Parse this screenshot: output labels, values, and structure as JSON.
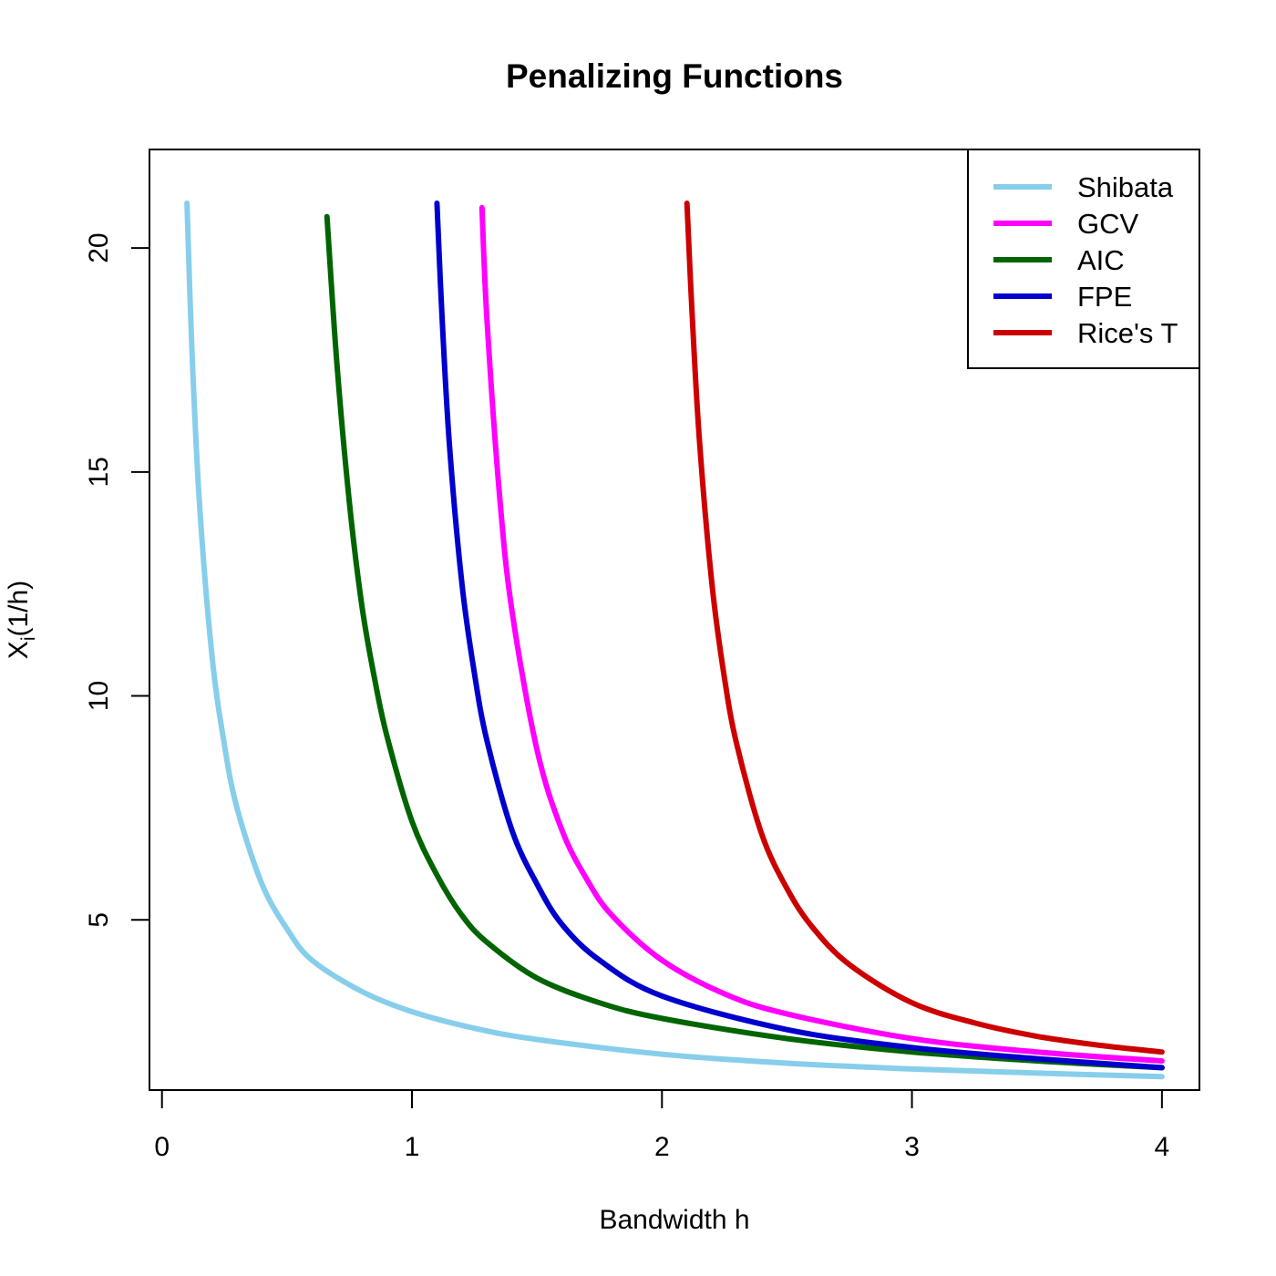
{
  "chart_data": {
    "type": "line",
    "title": "Penalizing Functions",
    "xlabel": "Bandwidth h",
    "ylabel": {
      "main": "X",
      "subscript": "i",
      "rest": "(1/h)"
    },
    "xlim": [
      -0.05,
      4.15
    ],
    "ylim": [
      1.2,
      22.2
    ],
    "xticks": [
      0,
      1,
      2,
      3,
      4
    ],
    "yticks": [
      5,
      10,
      15,
      20
    ],
    "grid": false,
    "legend_position": "top-right",
    "series": [
      {
        "name": "Shibata",
        "color": "#87CEEB",
        "x": [
          0.1,
          0.12,
          0.15,
          0.2,
          0.25,
          0.3,
          0.4,
          0.5,
          0.6,
          0.8,
          1.0,
          1.25,
          1.5,
          2.0,
          2.5,
          3.0,
          3.5,
          4.0
        ],
        "y": [
          21.0,
          17.7,
          14.3,
          10.9,
          8.9,
          7.5,
          5.8,
          4.8,
          4.1,
          3.4,
          2.95,
          2.58,
          2.33,
          2.0,
          1.8,
          1.67,
          1.58,
          1.5
        ]
      },
      {
        "name": "GCV",
        "color": "#FF00FF",
        "x": [
          1.28,
          1.3,
          1.35,
          1.4,
          1.5,
          1.6,
          1.7,
          1.8,
          2.0,
          2.25,
          2.5,
          3.0,
          3.5,
          4.0
        ],
        "y": [
          20.9,
          18.4,
          14.5,
          11.9,
          8.8,
          7.0,
          5.9,
          5.1,
          4.1,
          3.35,
          2.9,
          2.35,
          2.05,
          1.85
        ]
      },
      {
        "name": "AIC",
        "color": "#006400",
        "x": [
          0.66,
          0.7,
          0.75,
          0.8,
          0.85,
          0.9,
          1.0,
          1.1,
          1.2,
          1.3,
          1.5,
          1.75,
          2.0,
          2.5,
          3.0,
          3.5,
          4.0
        ],
        "y": [
          20.7,
          17.4,
          14.3,
          12.0,
          10.4,
          9.1,
          7.2,
          6.0,
          5.1,
          4.5,
          3.7,
          3.15,
          2.8,
          2.35,
          2.05,
          1.85,
          1.7
        ]
      },
      {
        "name": "FPE",
        "color": "#0000CD",
        "x": [
          1.1,
          1.12,
          1.15,
          1.2,
          1.25,
          1.3,
          1.4,
          1.5,
          1.6,
          1.75,
          2.0,
          2.5,
          3.0,
          3.5,
          4.0
        ],
        "y": [
          21.0,
          18.5,
          15.6,
          12.5,
          10.5,
          9.0,
          7.0,
          5.8,
          4.9,
          4.1,
          3.3,
          2.55,
          2.15,
          1.9,
          1.7
        ]
      },
      {
        "name": "Rice's T",
        "color": "#CD0000",
        "x": [
          2.1,
          2.12,
          2.15,
          2.2,
          2.25,
          2.3,
          2.4,
          2.5,
          2.6,
          2.75,
          3.0,
          3.25,
          3.5,
          3.75,
          4.0
        ],
        "y": [
          21.0,
          18.6,
          15.7,
          12.5,
          10.4,
          8.9,
          6.9,
          5.7,
          4.85,
          4.0,
          3.15,
          2.7,
          2.4,
          2.2,
          2.05
        ]
      }
    ]
  }
}
